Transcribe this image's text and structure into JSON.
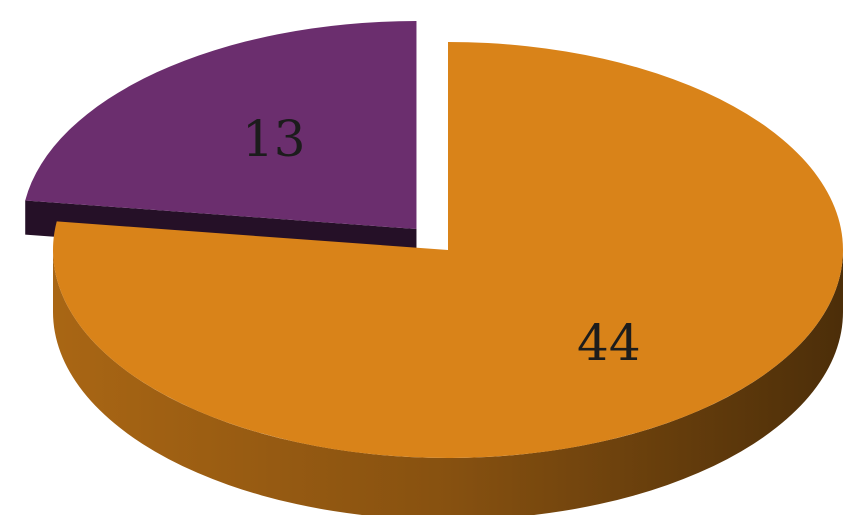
{
  "chart_data": {
    "type": "pie",
    "style": "3d-exploded",
    "categories": [
      "",
      ""
    ],
    "values": [
      44,
      13
    ],
    "colors": [
      "#D98319",
      "#6B2E6E"
    ],
    "data_labels": [
      "44",
      "13"
    ],
    "title": "",
    "legend": "none"
  }
}
